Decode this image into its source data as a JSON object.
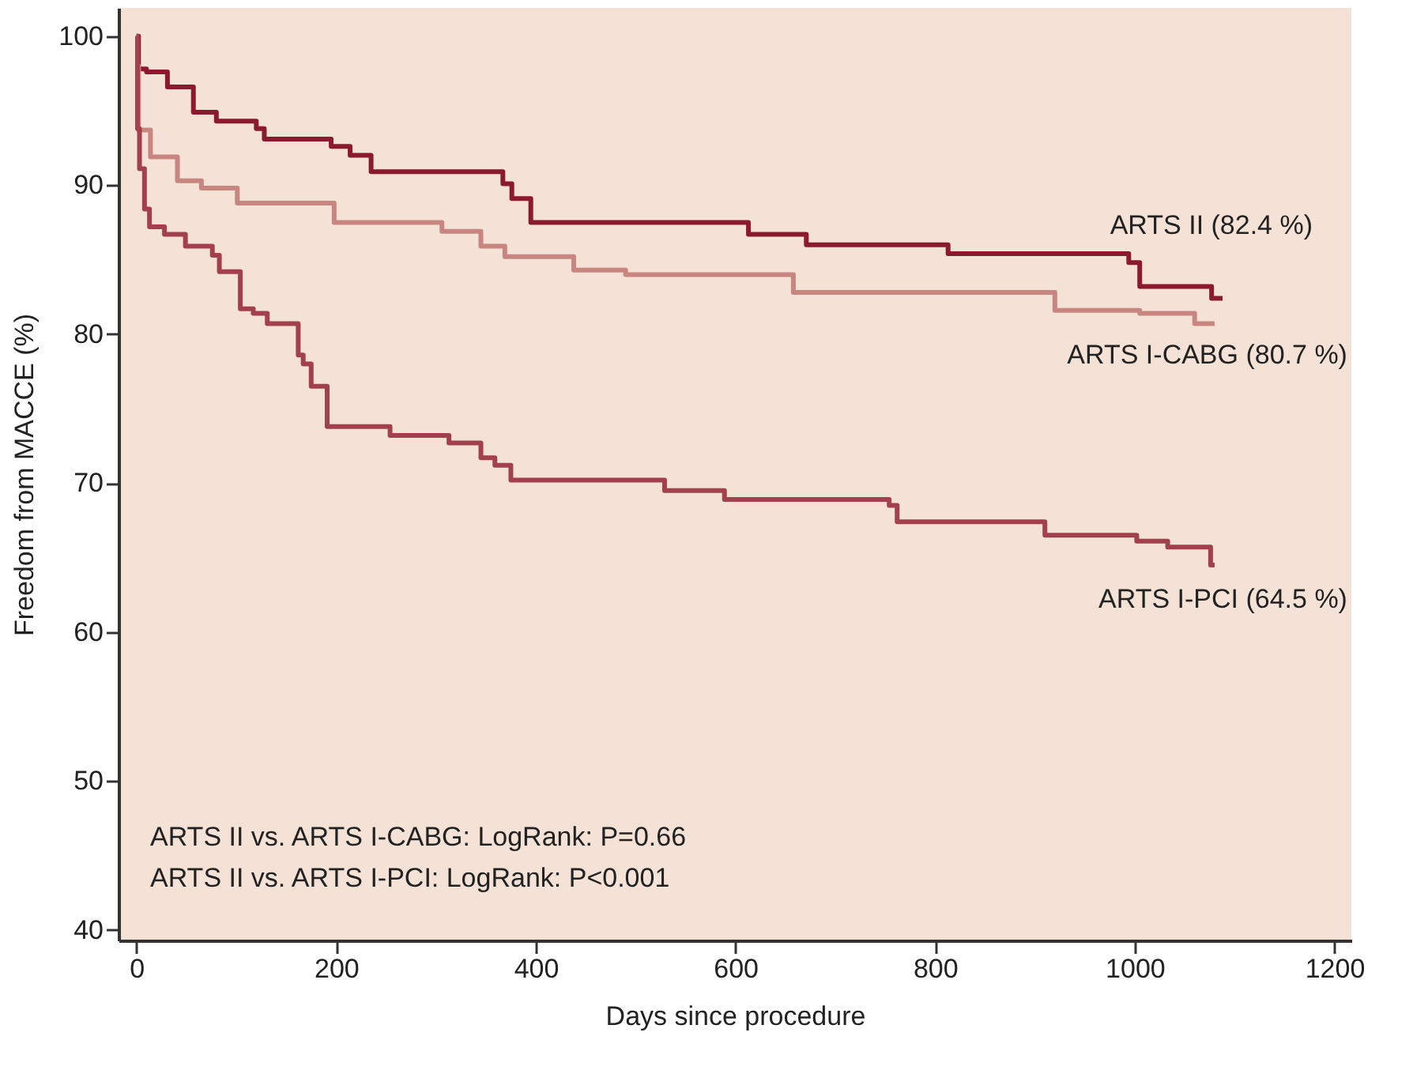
{
  "chart_data": {
    "type": "step",
    "xlabel": "Days since procedure",
    "ylabel": "Freedom from MACCE (%)",
    "xlim": [
      -18,
      1217
    ],
    "xticks": [
      0,
      200,
      400,
      600,
      800,
      1000,
      1200
    ],
    "ylim": [
      39.3,
      101.9
    ],
    "yticks": [
      40,
      50,
      60,
      70,
      80,
      90,
      100
    ],
    "grid": false,
    "legend": false,
    "marker": "none",
    "line_style": "solid",
    "annotations": [
      "ARTS II vs. ARTS I-CABG: LogRank: P=0.66",
      "ARTS II vs. ARTS I-PCI: LogRank: P<0.001"
    ],
    "series": [
      {
        "name": "ARTS II (82.4 %)",
        "color": "#8b1a2e",
        "x": [
          0,
          2,
          10,
          31,
          57,
          80,
          120,
          128,
          195,
          214,
          235,
          367,
          376,
          395,
          613,
          671,
          813,
          994,
          1005,
          1077,
          1088
        ],
        "values": [
          100,
          97.8,
          97.6,
          96.6,
          94.9,
          94.3,
          93.8,
          93.1,
          92.6,
          92.0,
          90.9,
          90.1,
          89.1,
          87.5,
          86.7,
          86.0,
          85.4,
          84.8,
          83.2,
          82.4,
          82.4
        ]
      },
      {
        "name": "ARTS I-CABG (80.7 %)",
        "color": "#c9857f",
        "x": [
          0,
          2,
          14,
          41,
          65,
          101,
          198,
          306,
          345,
          369,
          438,
          490,
          658,
          920,
          1005,
          1060,
          1080
        ],
        "values": [
          98,
          93.7,
          91.9,
          90.3,
          89.8,
          88.8,
          87.5,
          86.9,
          85.9,
          85.2,
          84.3,
          84.0,
          82.8,
          81.6,
          81.4,
          80.7,
          80.7
        ]
      },
      {
        "name": "ARTS I-PCI (64.5 %)",
        "color": "#a3404d",
        "x": [
          0,
          1,
          3,
          8,
          13,
          28,
          49,
          76,
          83,
          104,
          117,
          131,
          162,
          167,
          175,
          191,
          254,
          313,
          345,
          359,
          375,
          529,
          589,
          754,
          762,
          910,
          1002,
          1033,
          1076,
          1080
        ],
        "values": [
          100,
          93.8,
          91.1,
          88.4,
          87.2,
          86.7,
          85.9,
          85.3,
          84.2,
          81.7,
          81.4,
          80.7,
          78.6,
          78.0,
          76.5,
          73.8,
          73.2,
          72.7,
          71.7,
          71.2,
          70.2,
          69.5,
          68.9,
          68.5,
          67.4,
          66.5,
          66.1,
          65.7,
          64.5,
          64.5
        ]
      }
    ]
  }
}
